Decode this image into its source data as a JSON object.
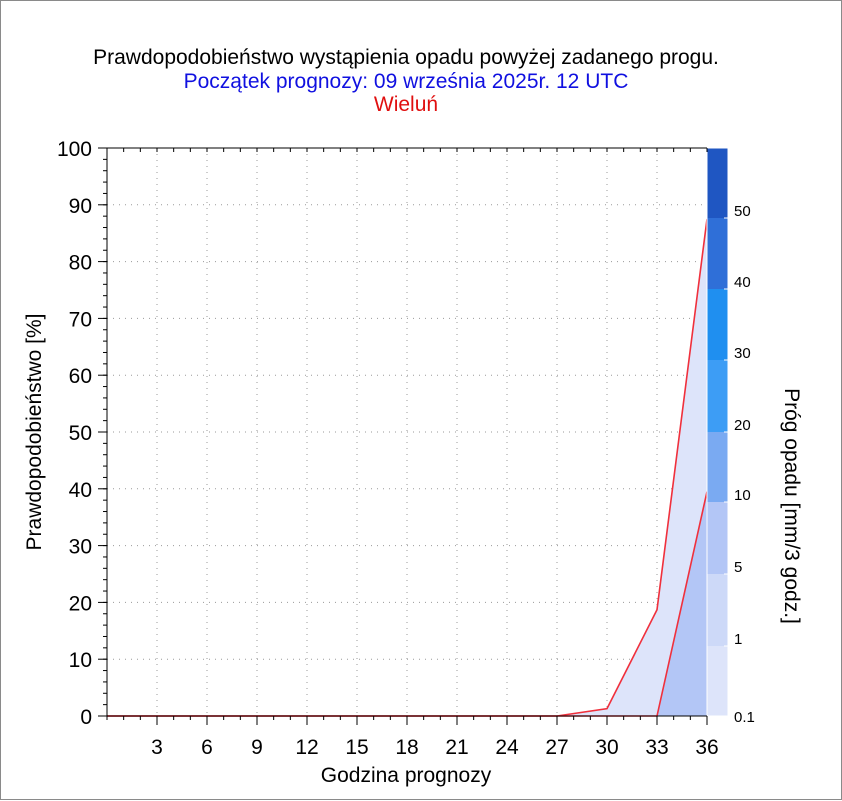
{
  "chart_data": {
    "type": "area",
    "title": "Prawdopodobieństwo wystąpienia opadu powyżej zadanego progu.",
    "subtitle": "Początek prognozy: 09 września 2025r. 12 UTC",
    "location": "Wieluń",
    "xlabel": "Godzina prognozy",
    "ylabel": "Prawdopodobieństwo [%]",
    "colorbar_label": "Próg opadu [mm/3 godz.]",
    "xlim": [
      0,
      36
    ],
    "ylim": [
      0,
      100
    ],
    "x_ticks": [
      "3",
      "6",
      "9",
      "12",
      "15",
      "18",
      "21",
      "24",
      "27",
      "30",
      "33",
      "36"
    ],
    "y_ticks": [
      "0",
      "10",
      "20",
      "30",
      "40",
      "50",
      "60",
      "70",
      "80",
      "90",
      "100"
    ],
    "grid": true,
    "x": [
      0,
      3,
      6,
      9,
      12,
      15,
      18,
      21,
      24,
      27,
      30,
      33,
      36
    ],
    "series": [
      {
        "threshold": "0.1",
        "color": "#dde4fa",
        "values": [
          0,
          0,
          0,
          0,
          0,
          0,
          0,
          0,
          0,
          0,
          1.3,
          18.7,
          87.5
        ]
      },
      {
        "threshold": "1",
        "color": "#b3c6f6",
        "values": [
          0,
          0,
          0,
          0,
          0,
          0,
          0,
          0,
          0,
          0,
          0,
          0,
          39.5
        ]
      }
    ],
    "line_color": "#f0303c",
    "colorbar": {
      "labels": [
        "0.1",
        "1",
        "5",
        "10",
        "20",
        "30",
        "40",
        "50"
      ],
      "colors": [
        "#dde4fa",
        "#cdd9f8",
        "#b3c6f6",
        "#7aaaf2",
        "#3d9df5",
        "#1f8ff0",
        "#2f6fd8",
        "#1f56c2",
        "#1240a6"
      ]
    }
  }
}
